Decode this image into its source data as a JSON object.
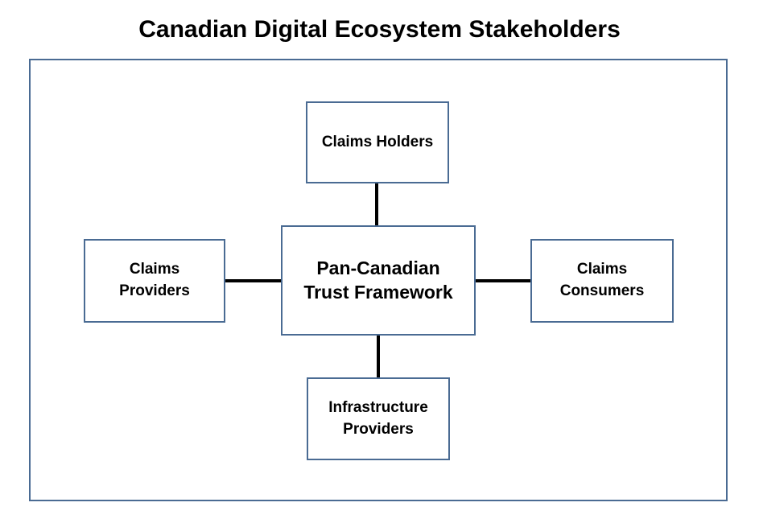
{
  "title": "Canadian Digital Ecosystem Stakeholders",
  "colors": {
    "box_border": "#4a6b93",
    "connector": "#000000",
    "text": "#000000"
  },
  "nodes": {
    "center": "Pan-Canadian\nTrust Framework",
    "top": "Claims Holders",
    "left": "Claims\nProviders",
    "right": "Claims\nConsumers",
    "bottom": "Infrastructure\nProviders"
  }
}
